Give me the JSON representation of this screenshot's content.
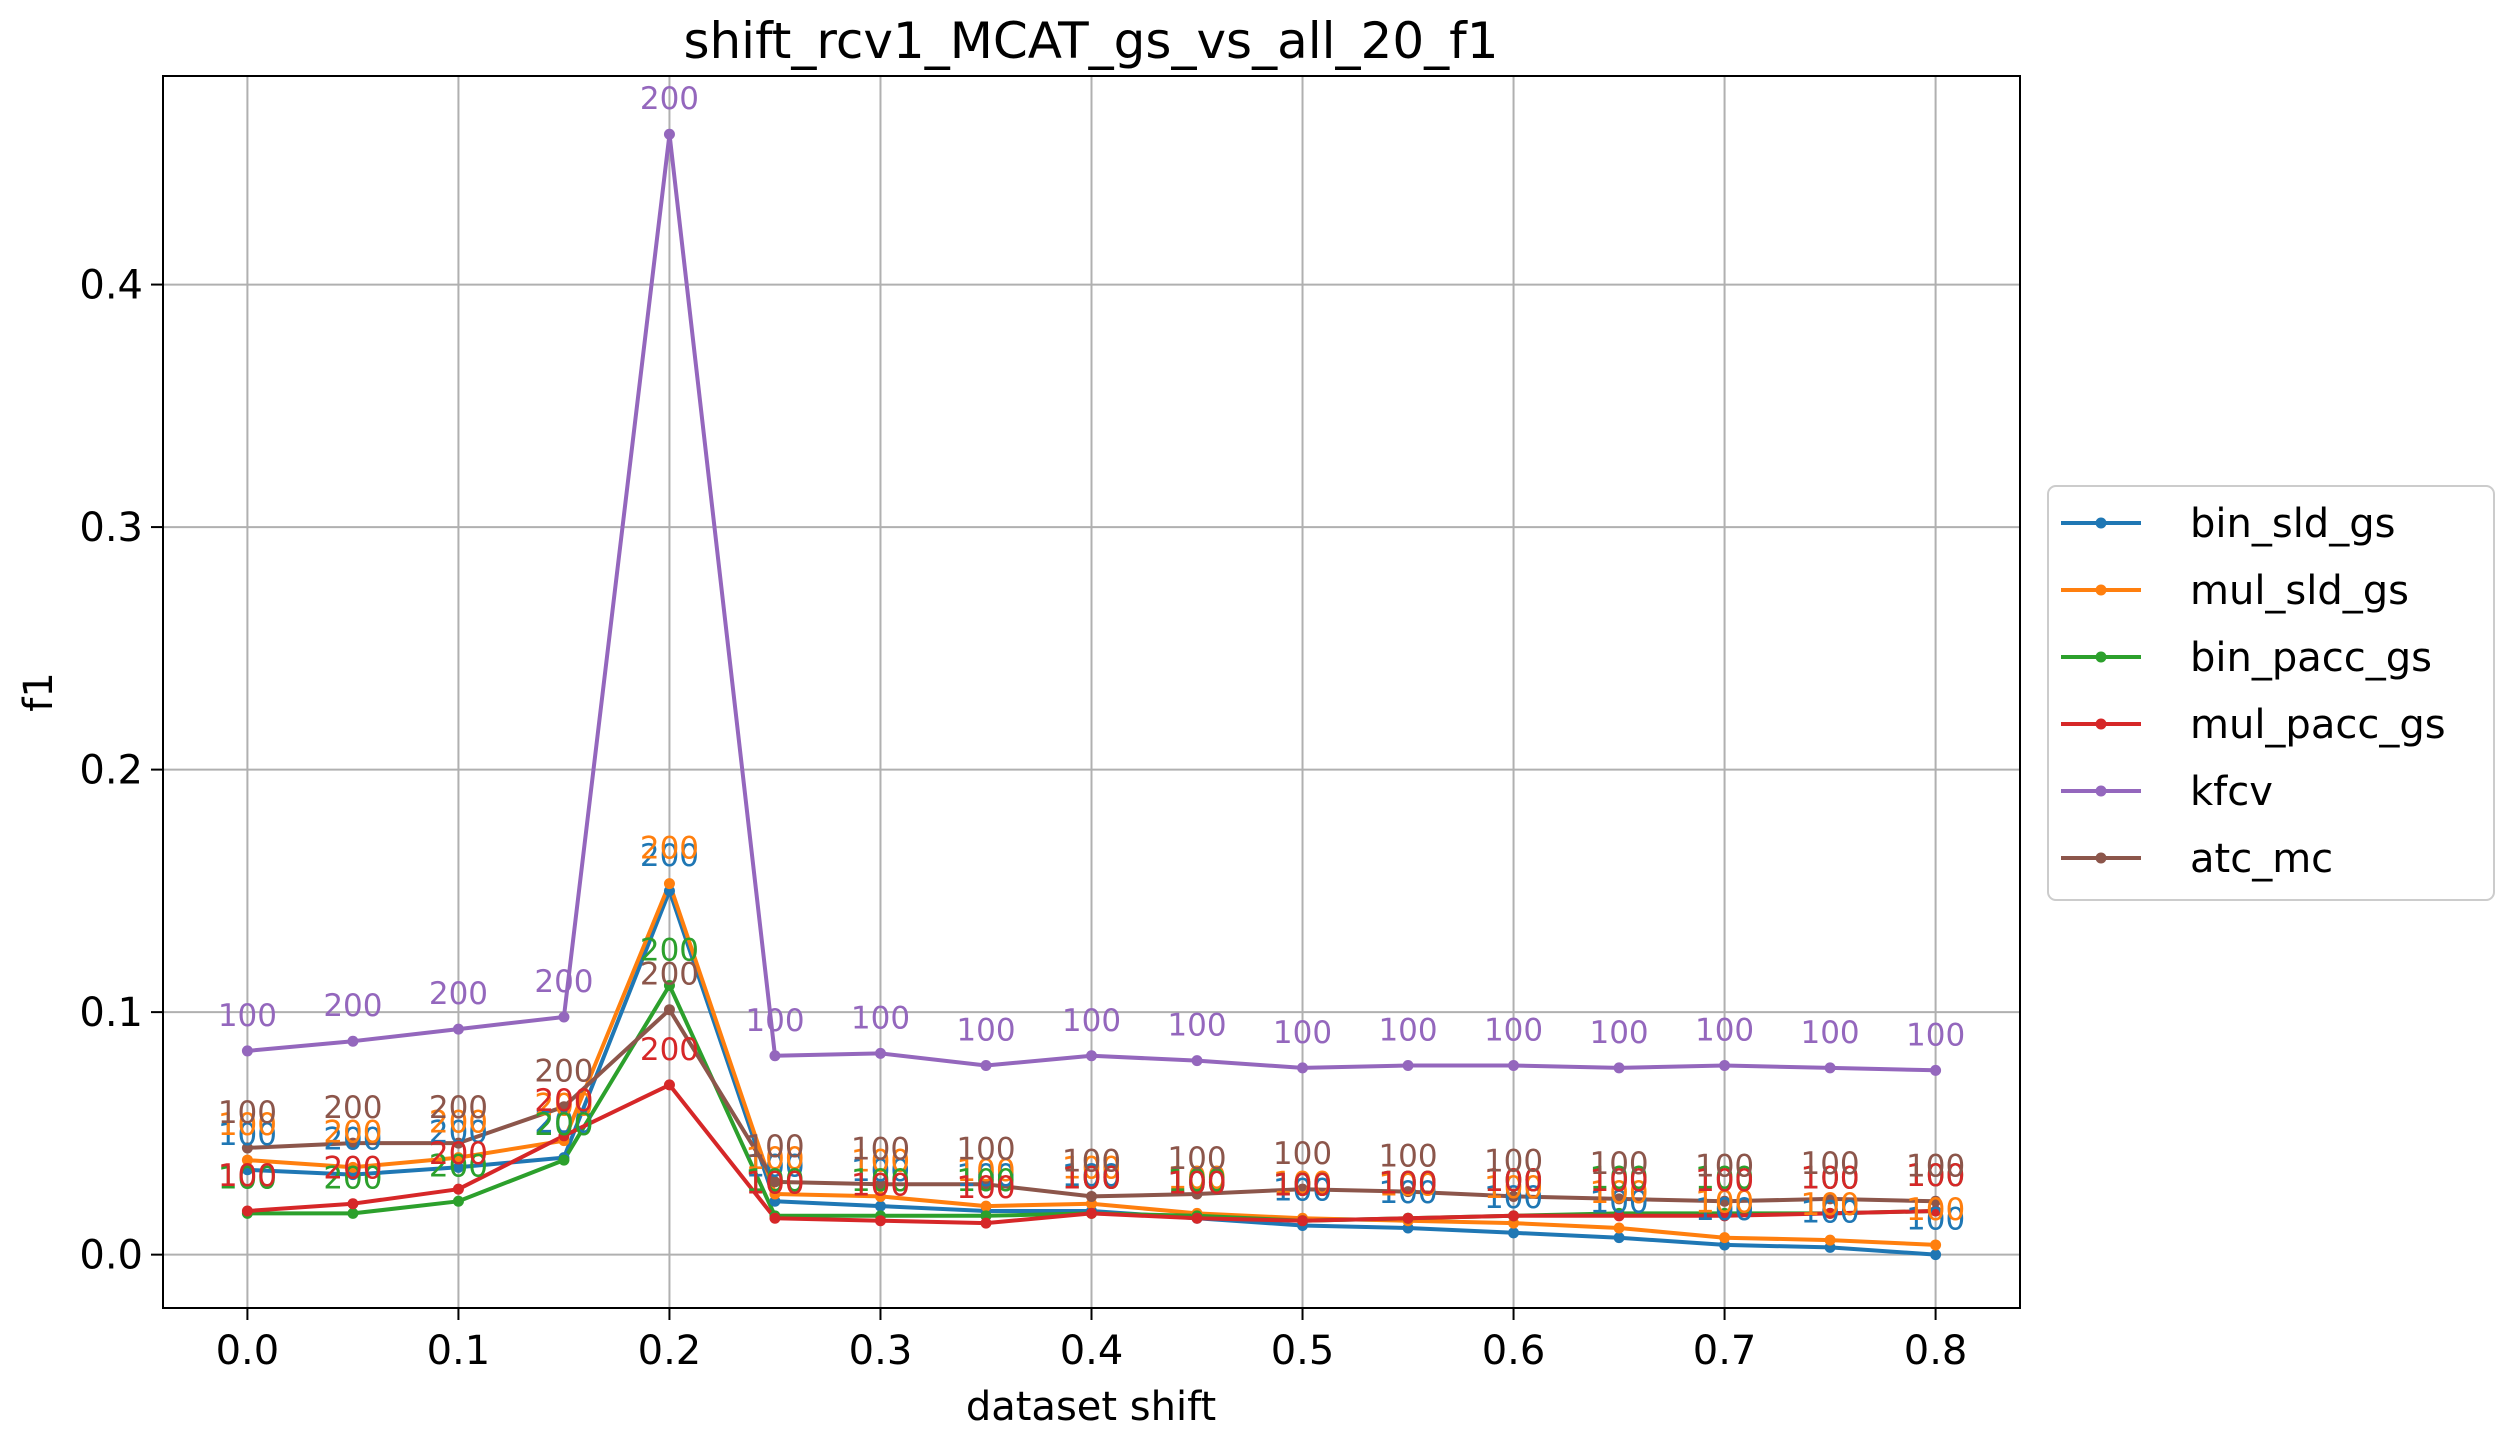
{
  "chart_data": {
    "type": "line",
    "title": "shift_rcv1_MCAT_gs_vs_all_20_f1",
    "xlabel": "dataset shift",
    "ylabel": "f1",
    "x": [
      0.0,
      0.05,
      0.1,
      0.15,
      0.2,
      0.25,
      0.3,
      0.35,
      0.4,
      0.45,
      0.5,
      0.55,
      0.6,
      0.65,
      0.7,
      0.75,
      0.8
    ],
    "xlim": [
      -0.04,
      0.84
    ],
    "ylim": [
      -0.022,
      0.486
    ],
    "xticks": [
      0.0,
      0.1,
      0.2,
      0.3,
      0.4,
      0.5,
      0.6,
      0.7,
      0.8
    ],
    "xtick_labels": [
      "0.0",
      "0.1",
      "0.2",
      "0.3",
      "0.4",
      "0.5",
      "0.6",
      "0.7",
      "0.8"
    ],
    "yticks": [
      0.0,
      0.1,
      0.2,
      0.3,
      0.4
    ],
    "ytick_labels": [
      "0.0",
      "0.1",
      "0.2",
      "0.3",
      "0.4"
    ],
    "grid": true,
    "legend_position": "center-right outside",
    "series": [
      {
        "name": "bin_sld_gs",
        "color": "#1f77b4",
        "values": [
          0.035,
          0.033,
          0.036,
          0.04,
          0.15,
          0.022,
          0.02,
          0.018,
          0.018,
          0.015,
          0.012,
          0.011,
          0.009,
          0.007,
          0.004,
          0.003,
          0.0
        ],
        "labels": [
          "100",
          "200",
          "200",
          "200",
          "200",
          "100",
          "100",
          "100",
          "100",
          "100",
          "100",
          "100",
          "100",
          "100",
          "100",
          "100",
          "100"
        ]
      },
      {
        "name": "mul_sld_gs",
        "color": "#ff7f0e",
        "values": [
          0.039,
          0.036,
          0.04,
          0.047,
          0.153,
          0.025,
          0.024,
          0.02,
          0.021,
          0.017,
          0.015,
          0.014,
          0.013,
          0.011,
          0.007,
          0.006,
          0.004
        ],
        "labels": [
          "100",
          "200",
          "200",
          "200",
          "200",
          "100",
          "100",
          "100",
          "100",
          "100",
          "100",
          "100",
          "100",
          "100",
          "100",
          "100",
          "100"
        ]
      },
      {
        "name": "bin_pacc_gs",
        "color": "#2ca02c",
        "values": [
          0.017,
          0.017,
          0.022,
          0.039,
          0.111,
          0.016,
          0.016,
          0.016,
          0.017,
          0.016,
          0.014,
          0.015,
          0.016,
          0.017,
          0.017,
          0.017,
          0.018
        ],
        "labels": [
          "100",
          "200",
          "200",
          "200",
          "200",
          "100",
          "100",
          "100",
          "100",
          "100",
          "100",
          "100",
          "100",
          "100",
          "100",
          "100",
          "100"
        ]
      },
      {
        "name": "mul_pacc_gs",
        "color": "#d62728",
        "values": [
          0.018,
          0.021,
          0.027,
          0.049,
          0.07,
          0.015,
          0.014,
          0.013,
          0.017,
          0.015,
          0.014,
          0.015,
          0.016,
          0.016,
          0.016,
          0.017,
          0.018
        ],
        "labels": [
          "100",
          "200",
          "200",
          "200",
          "200",
          "100",
          "100",
          "100",
          "100",
          "100",
          "100",
          "100",
          "100",
          "100",
          "100",
          "100",
          "100"
        ]
      },
      {
        "name": "kfcv",
        "color": "#9467bd",
        "values": [
          0.084,
          0.088,
          0.093,
          0.098,
          0.462,
          0.082,
          0.083,
          0.078,
          0.082,
          0.08,
          0.077,
          0.078,
          0.078,
          0.077,
          0.078,
          0.077,
          0.076
        ],
        "labels": [
          "100",
          "200",
          "200",
          "200",
          "200",
          "100",
          "100",
          "100",
          "100",
          "100",
          "100",
          "100",
          "100",
          "100",
          "100",
          "100",
          "100"
        ]
      },
      {
        "name": "atc_mc",
        "color": "#8c564b",
        "values": [
          0.044,
          0.046,
          0.046,
          0.061,
          0.101,
          0.03,
          0.029,
          0.029,
          0.024,
          0.025,
          0.027,
          0.026,
          0.024,
          0.023,
          0.022,
          0.023,
          0.022
        ],
        "labels": [
          "100",
          "200",
          "200",
          "200",
          "200",
          "100",
          "100",
          "100",
          "100",
          "100",
          "100",
          "100",
          "100",
          "100",
          "100",
          "100",
          "100"
        ]
      }
    ]
  }
}
